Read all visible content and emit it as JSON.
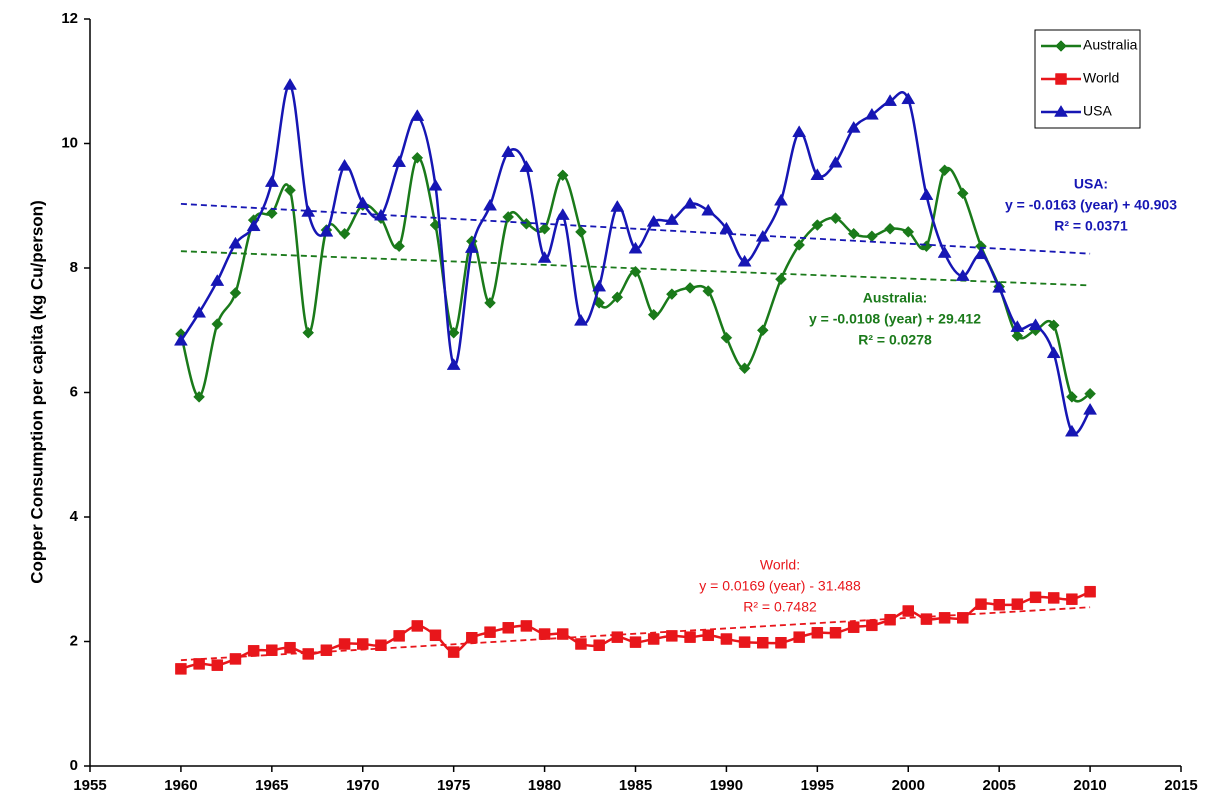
{
  "chart_data": {
    "type": "line",
    "y_label": "Copper Consumption per capita (kg Cu/person)",
    "xlim": [
      1955,
      2015
    ],
    "xticks": [
      1955,
      1960,
      1965,
      1970,
      1975,
      1980,
      1985,
      1990,
      1995,
      2000,
      2005,
      2010,
      2015
    ],
    "ylim": [
      0,
      12
    ],
    "yticks": [
      0,
      2,
      4,
      6,
      8,
      10,
      12
    ],
    "legend": "top-right",
    "smooth": true,
    "x": [
      1960,
      1961,
      1962,
      1963,
      1964,
      1965,
      1966,
      1967,
      1968,
      1969,
      1970,
      1971,
      1972,
      1973,
      1974,
      1975,
      1976,
      1977,
      1978,
      1979,
      1980,
      1981,
      1982,
      1983,
      1984,
      1985,
      1986,
      1987,
      1988,
      1989,
      1990,
      1991,
      1992,
      1993,
      1994,
      1995,
      1996,
      1997,
      1998,
      1999,
      2000,
      2001,
      2002,
      2003,
      2004,
      2005,
      2006,
      2007,
      2008,
      2009,
      2010
    ],
    "series": [
      {
        "name": "Australia",
        "color": "#1a7a1a",
        "marker": "diamond",
        "values": [
          6.94,
          5.93,
          7.1,
          7.6,
          8.77,
          8.88,
          9.25,
          6.96,
          8.61,
          8.55,
          9.01,
          8.8,
          8.35,
          9.77,
          8.69,
          6.96,
          8.43,
          7.44,
          8.82,
          8.71,
          8.63,
          9.49,
          8.58,
          7.44,
          7.53,
          7.94,
          7.25,
          7.58,
          7.68,
          7.63,
          6.88,
          6.39,
          7.0,
          7.82,
          8.37,
          8.69,
          8.8,
          8.55,
          8.51,
          8.63,
          8.58,
          8.35,
          9.57,
          9.2,
          8.35,
          7.7,
          6.91,
          7.0,
          7.08,
          5.93,
          5.98
        ],
        "trend": {
          "x": [
            1960,
            2010
          ],
          "y": [
            8.27,
            7.72
          ]
        },
        "annotation": [
          "Australia:",
          "y = -0.0108 (year) + 29.412",
          "R² = 0.0278"
        ]
      },
      {
        "name": "World",
        "color": "#e8161b",
        "marker": "square",
        "values": [
          1.56,
          1.64,
          1.62,
          1.72,
          1.85,
          1.86,
          1.9,
          1.8,
          1.86,
          1.96,
          1.96,
          1.94,
          2.09,
          2.25,
          2.1,
          1.83,
          2.06,
          2.15,
          2.22,
          2.25,
          2.12,
          2.12,
          1.96,
          1.94,
          2.07,
          1.99,
          2.04,
          2.09,
          2.07,
          2.1,
          2.04,
          1.99,
          1.98,
          1.98,
          2.07,
          2.14,
          2.14,
          2.23,
          2.26,
          2.35,
          2.49,
          2.36,
          2.38,
          2.38,
          2.6,
          2.59,
          2.6,
          2.71,
          2.7,
          2.68,
          2.8
        ],
        "trend": {
          "x": [
            1960,
            2010
          ],
          "y": [
            1.7,
            2.55
          ]
        },
        "annotation": [
          "World:",
          "y = 0.0169 (year) - 31.488",
          "R² = 0.7482"
        ]
      },
      {
        "name": "USA",
        "color": "#1616b4",
        "marker": "triangle",
        "values": [
          6.83,
          7.28,
          7.79,
          8.39,
          8.67,
          9.38,
          10.94,
          8.9,
          8.58,
          9.64,
          9.04,
          8.84,
          9.7,
          10.44,
          9.32,
          6.44,
          8.32,
          9.0,
          9.86,
          9.62,
          8.16,
          8.85,
          7.15,
          7.7,
          8.98,
          8.31,
          8.74,
          8.77,
          9.03,
          8.92,
          8.63,
          8.1,
          8.5,
          9.08,
          10.18,
          9.49,
          9.69,
          10.25,
          10.46,
          10.68,
          10.71,
          9.17,
          8.24,
          7.87,
          8.22,
          7.68,
          7.05,
          7.08,
          6.63,
          5.37,
          5.72
        ],
        "trend": {
          "x": [
            1960,
            2010
          ],
          "y": [
            9.03,
            8.23
          ]
        },
        "annotation": [
          "USA:",
          "y = -0.0163 (year) + 40.903",
          "R² = 0.0371"
        ]
      }
    ]
  }
}
